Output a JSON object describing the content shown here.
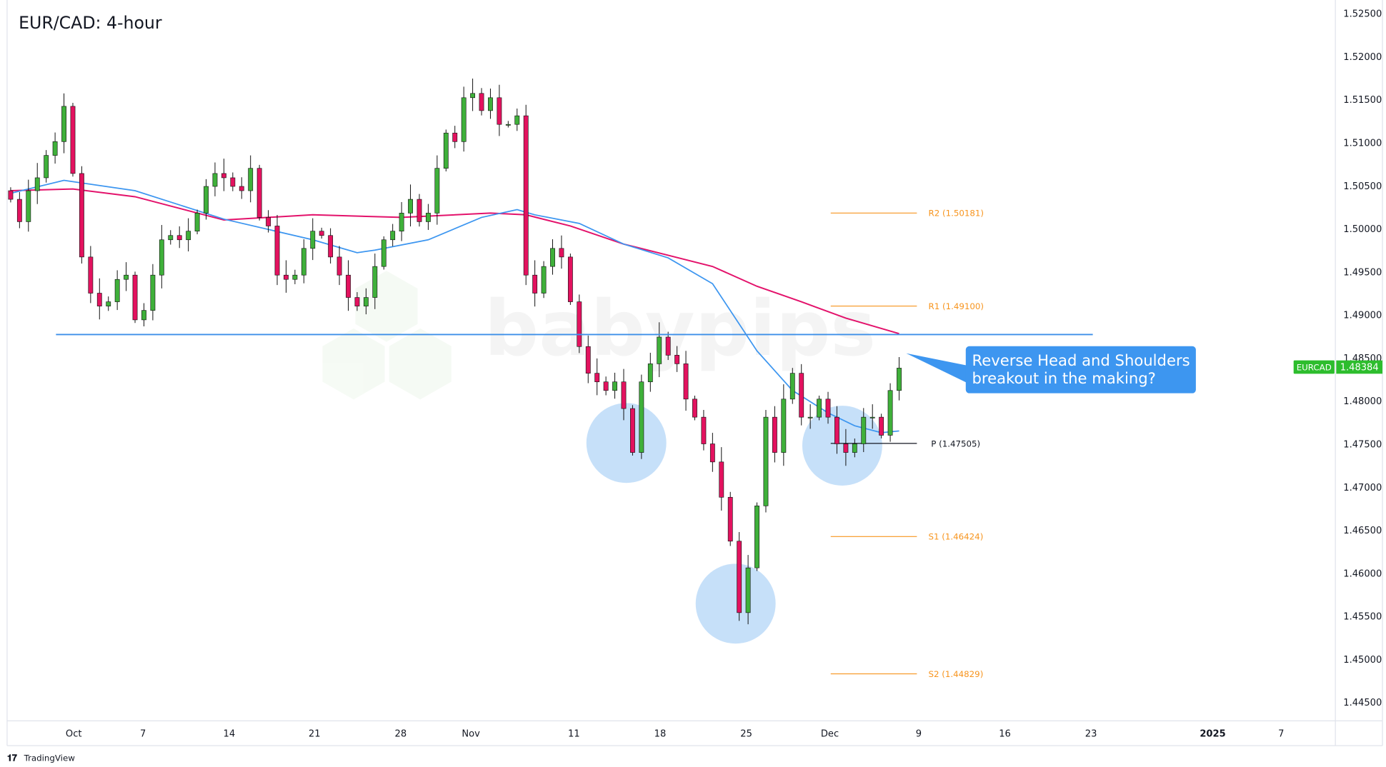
{
  "title": "EUR/CAD: 4-hour",
  "watermark": "babypips",
  "footer_logo": "TradingView",
  "price_tag": {
    "symbol": "EURCAD",
    "value": "1.48384",
    "color": "#2dbd2d"
  },
  "annotation": {
    "line1": "Reverse Head and Shoulders",
    "line2": "breakout in the making?",
    "color": "#3d96f0"
  },
  "colors": {
    "up": "#3fb03a",
    "down": "#e3125f",
    "ma_fast": "#3d96f0",
    "ma_slow": "#e3126b",
    "neckline": "#3d8fe8",
    "pivot_sr": "#f7941d",
    "pivot_p": "#131722",
    "shoulder_circles": "#bcdaf8"
  },
  "chart_data": {
    "type": "candlestick",
    "symbol": "EUR/CAD",
    "timeframe": "4-hour",
    "y_ticks": [
      "1.52500",
      "1.52000",
      "1.51500",
      "1.51000",
      "1.50500",
      "1.50000",
      "1.49500",
      "1.49000",
      "1.48500",
      "1.48000",
      "1.47500",
      "1.47000",
      "1.46500",
      "1.46000",
      "1.45500",
      "1.45000",
      "1.44500"
    ],
    "ylim": [
      1.4425,
      1.5265
    ],
    "x_ticks": [
      "Oct",
      "7",
      "14",
      "21",
      "28",
      "Nov",
      "11",
      "18",
      "25",
      "Dec",
      "9",
      "16",
      "23",
      "2025",
      "7"
    ],
    "closes": [
      1.5034,
      1.5008,
      1.5044,
      1.5059,
      1.5085,
      1.5101,
      1.5142,
      1.5064,
      1.4967,
      1.4925,
      1.491,
      1.4915,
      1.4941,
      1.4946,
      1.4894,
      1.4905,
      1.4946,
      1.4987,
      1.4992,
      1.4987,
      1.4997,
      1.5018,
      1.5049,
      1.5064,
      1.5059,
      1.5049,
      1.5044,
      1.507,
      1.5013,
      1.5003,
      1.4946,
      1.4941,
      1.4946,
      1.4977,
      1.4997,
      1.4992,
      1.4967,
      1.4946,
      1.492,
      1.491,
      1.492,
      1.4956,
      1.4987,
      1.4997,
      1.5018,
      1.5034,
      1.5008,
      1.5018,
      1.507,
      1.5111,
      1.5101,
      1.5152,
      1.5157,
      1.5137,
      1.5152,
      1.5121,
      1.5121,
      1.5131,
      1.4946,
      1.4925,
      1.4956,
      1.4977,
      1.4967,
      1.4915,
      1.4863,
      1.4832,
      1.4822,
      1.4812,
      1.4822,
      1.4791,
      1.474,
      1.4822,
      1.4843,
      1.4874,
      1.4853,
      1.4843,
      1.4802,
      1.4781,
      1.475,
      1.4729,
      1.4688,
      1.4637,
      1.4554,
      1.4606,
      1.4678,
      1.4781,
      1.474,
      1.4802,
      1.4832,
      1.4781,
      1.4781,
      1.4802,
      1.4781,
      1.475,
      1.474,
      1.475,
      1.4781,
      1.4781,
      1.476,
      1.4812,
      1.4838
    ],
    "ma_fast": [
      [
        0,
        1.5041
      ],
      [
        6,
        1.5056
      ],
      [
        14,
        1.5044
      ],
      [
        24,
        1.5011
      ],
      [
        34,
        1.4987
      ],
      [
        39,
        1.4972
      ],
      [
        41,
        1.4975
      ],
      [
        47,
        1.4987
      ],
      [
        53,
        1.5013
      ],
      [
        57,
        1.5022
      ],
      [
        59,
        1.5016
      ],
      [
        64,
        1.5006
      ],
      [
        69,
        1.4982
      ],
      [
        74,
        1.4966
      ],
      [
        79,
        1.4936
      ],
      [
        84,
        1.4858
      ],
      [
        88,
        1.4812
      ],
      [
        92,
        1.4786
      ],
      [
        95,
        1.4771
      ],
      [
        98,
        1.4763
      ],
      [
        100,
        1.4765
      ]
    ],
    "ma_slow": [
      [
        0,
        1.5044
      ],
      [
        7,
        1.5046
      ],
      [
        14,
        1.5037
      ],
      [
        24,
        1.501
      ],
      [
        34,
        1.5016
      ],
      [
        44,
        1.5013
      ],
      [
        54,
        1.5018
      ],
      [
        58,
        1.5016
      ],
      [
        63,
        1.5003
      ],
      [
        69,
        1.4982
      ],
      [
        74,
        1.4969
      ],
      [
        79,
        1.4956
      ],
      [
        84,
        1.4933
      ],
      [
        89,
        1.4915
      ],
      [
        94,
        1.4896
      ],
      [
        100,
        1.4878
      ]
    ],
    "neckline": 1.4877,
    "pivots": [
      {
        "label": "R2 (1.50181)",
        "value": 1.50181,
        "kind": "sr"
      },
      {
        "label": "R1 (1.49100)",
        "value": 1.491,
        "kind": "sr"
      },
      {
        "label": "P (1.47505)",
        "value": 1.47505,
        "kind": "p"
      },
      {
        "label": "S1 (1.46424)",
        "value": 1.46424,
        "kind": "sr"
      },
      {
        "label": "S2 (1.44829)",
        "value": 1.44829,
        "kind": "sr"
      }
    ],
    "last_price": 1.48384
  }
}
